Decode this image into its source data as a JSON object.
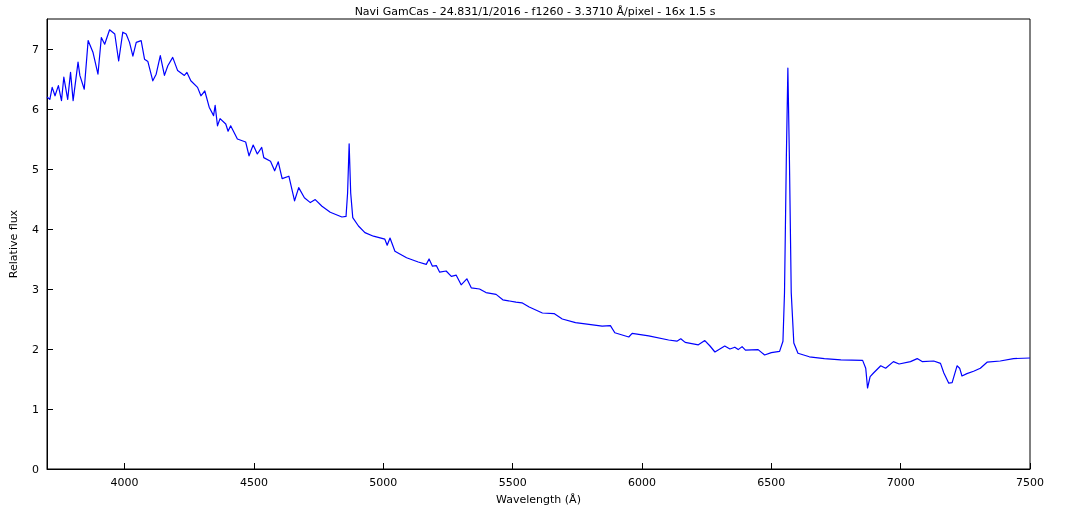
{
  "chart_data": {
    "type": "line",
    "title": "Navi GamCas - 24.831/1/2016 - f1260 - 3.3710 Å/pixel - 16x 1.5 s",
    "xlabel": "Wavelength (Å)",
    "ylabel": "Relative flux",
    "x": [
      3700,
      3711,
      3720,
      3731,
      3744,
      3756,
      3765,
      3780,
      3791,
      3801,
      3820,
      3827,
      3844,
      3859,
      3878,
      3897,
      3910,
      3923,
      3942,
      3962,
      3977,
      3993,
      4006,
      4019,
      4032,
      4045,
      4064,
      4077,
      4090,
      4109,
      4122,
      4138,
      4154,
      4167,
      4186,
      4205,
      4231,
      4241,
      4256,
      4282,
      4295,
      4310,
      4327,
      4344,
      4350,
      4359,
      4369,
      4391,
      4400,
      4410,
      4436,
      4468,
      4481,
      4497,
      4513,
      4530,
      4538,
      4564,
      4580,
      4594,
      4609,
      4635,
      4657,
      4673,
      4695,
      4718,
      4737,
      4763,
      4795,
      4840,
      4856,
      4862,
      4868,
      4874,
      4882,
      4904,
      4929,
      4962,
      5006,
      5015,
      5026,
      5045,
      5090,
      5135,
      5166,
      5177,
      5190,
      5205,
      5218,
      5243,
      5263,
      5282,
      5301,
      5323,
      5340,
      5372,
      5397,
      5436,
      5462,
      5513,
      5536,
      5564,
      5615,
      5660,
      5692,
      5743,
      5795,
      5846,
      5878,
      5895,
      5949,
      5962,
      6026,
      6103,
      6135,
      6150,
      6167,
      6218,
      6243,
      6263,
      6282,
      6320,
      6340,
      6359,
      6372,
      6387,
      6400,
      6449,
      6474,
      6500,
      6532,
      6545,
      6551,
      6558,
      6564,
      6570,
      6577,
      6587,
      6603,
      6647,
      6705,
      6769,
      6853,
      6865,
      6872,
      6882,
      6895,
      6923,
      6942,
      6972,
      6994,
      7038,
      7064,
      7083,
      7128,
      7154,
      7167,
      7186,
      7199,
      7218,
      7228,
      7237,
      7256,
      7282,
      7308,
      7334,
      7385,
      7436,
      7500
    ],
    "values": [
      6.2,
      6.16,
      6.36,
      6.22,
      6.39,
      6.14,
      6.53,
      6.16,
      6.61,
      6.14,
      6.78,
      6.56,
      6.33,
      7.14,
      6.94,
      6.58,
      7.19,
      7.08,
      7.32,
      7.25,
      6.8,
      7.28,
      7.25,
      7.11,
      6.88,
      7.11,
      7.14,
      6.83,
      6.79,
      6.47,
      6.58,
      6.89,
      6.56,
      6.72,
      6.86,
      6.64,
      6.56,
      6.61,
      6.47,
      6.36,
      6.22,
      6.3,
      6.03,
      5.89,
      6.06,
      5.72,
      5.84,
      5.75,
      5.63,
      5.72,
      5.5,
      5.45,
      5.22,
      5.4,
      5.25,
      5.36,
      5.19,
      5.13,
      4.97,
      5.12,
      4.84,
      4.88,
      4.47,
      4.69,
      4.52,
      4.44,
      4.49,
      4.38,
      4.28,
      4.2,
      4.21,
      4.6,
      5.42,
      4.6,
      4.19,
      4.05,
      3.94,
      3.88,
      3.83,
      3.73,
      3.85,
      3.63,
      3.52,
      3.45,
      3.41,
      3.5,
      3.38,
      3.39,
      3.28,
      3.3,
      3.21,
      3.23,
      3.07,
      3.17,
      3.02,
      3,
      2.94,
      2.91,
      2.82,
      2.78,
      2.77,
      2.7,
      2.6,
      2.59,
      2.5,
      2.44,
      2.41,
      2.38,
      2.39,
      2.27,
      2.2,
      2.26,
      2.22,
      2.15,
      2.13,
      2.17,
      2.11,
      2.07,
      2.14,
      2.05,
      1.95,
      2.05,
      2,
      2.03,
      1.99,
      2.04,
      1.98,
      1.99,
      1.9,
      1.94,
      1.96,
      2.13,
      2.94,
      5.16,
      6.68,
      5.16,
      2.94,
      2.1,
      1.93,
      1.87,
      1.84,
      1.82,
      1.81,
      1.68,
      1.35,
      1.54,
      1.6,
      1.72,
      1.68,
      1.79,
      1.75,
      1.79,
      1.84,
      1.79,
      1.8,
      1.76,
      1.6,
      1.43,
      1.44,
      1.72,
      1.68,
      1.55,
      1.59,
      1.63,
      1.68,
      1.78,
      1.8,
      1.84,
      1.85
    ],
    "color": "#0000ff",
    "xlim": [
      3700,
      7500
    ],
    "xticks": [
      4000,
      4500,
      5000,
      5500,
      6000,
      6500,
      7000,
      7500
    ],
    "ylim": [
      0,
      7.5
    ],
    "yticks": [
      0,
      1,
      2,
      3,
      4,
      5,
      6,
      7
    ],
    "grid": false,
    "marker": "none",
    "line_style": "solid"
  }
}
